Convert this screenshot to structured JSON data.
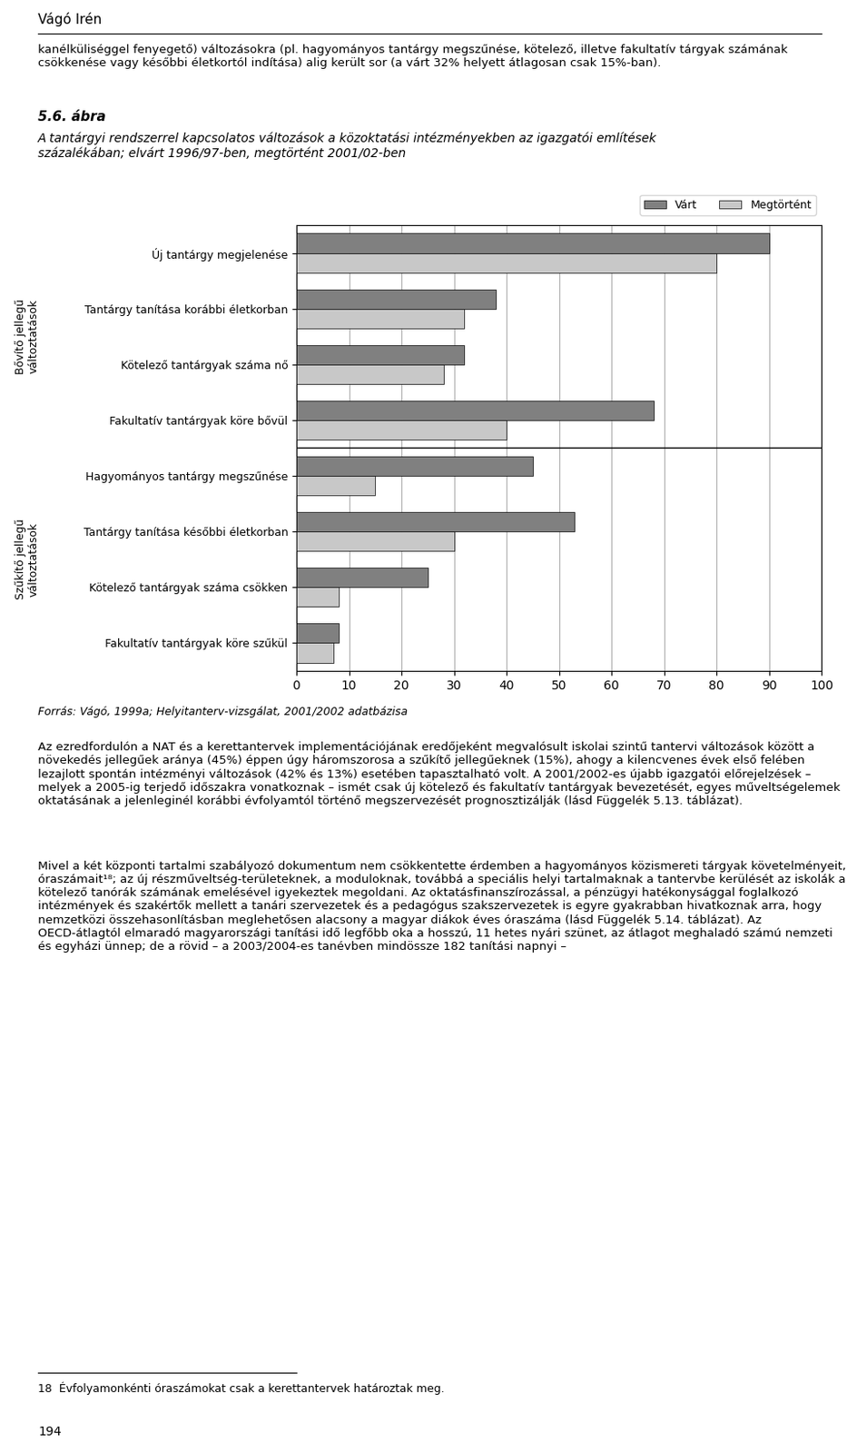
{
  "chart_data": {
    "type": "bar",
    "orientation": "horizontal",
    "header": "Vágó Irén",
    "text_above": "kanélküliséggel fenyegető) változásokra (pl. hagyományos tantárgy megszűnése, kötelező, illetve fakultatív tárgyak számának csökkenése vagy későbbi életkortól indítása) alig került sor (a várt 32% helyett átlagosan csak 15%-ban).",
    "title": "5.6. ábra",
    "subtitle": "A tantárgyi rendszerrel kapcsolatos változások a közoktatási intézményekben az igazgatói említések\nszázalékában; elvárt 1996/97-ben, megtörtént 2001/02-ben",
    "categories": [
      "Új tantárgy megjelenése",
      "Tantárgy tanítása korábbi életkorban",
      "Kötelező tantárgyak száma nő",
      "Fakultatív tantárgyak köre bővül",
      "Hagyományos tantárgy megszűnése",
      "Tantárgy tanítása későbbi életkorban",
      "Kötelező tantárgyak száma csökken",
      "Fakultatív tantárgyak köre szűkül"
    ],
    "series": [
      {
        "name": "Várt",
        "color": "#808080",
        "values": [
          90,
          38,
          32,
          68,
          45,
          53,
          25,
          8
        ]
      },
      {
        "name": "Megtörtént",
        "color": "#c8c8c8",
        "values": [
          80,
          32,
          28,
          40,
          15,
          30,
          8,
          7
        ]
      }
    ],
    "groups": [
      {
        "label": "Bővítő jellegű\nváltoztatások",
        "categories": [
          "Új tantárgy megjelenése",
          "Tantárgy tanítása korábbi életkorban",
          "Kötelező tantárgyak száma nő",
          "Fakultatív tantárgyak köre bővül"
        ]
      },
      {
        "label": "Szűkítő jellegű\nváltoztatások",
        "categories": [
          "Hagyományos tantárgy megszűnése",
          "Tantárgy tanítása későbbi életkorban",
          "Kötelező tantárgyak száma csökken",
          "Fakultatív tantárgyak köre szűkül"
        ]
      }
    ],
    "xlim": [
      0,
      100
    ],
    "xticks": [
      0,
      10,
      20,
      30,
      40,
      50,
      60,
      70,
      80,
      90,
      100
    ],
    "grid": true,
    "legend": "upper right",
    "source": "Forrás: Vágó, 1999a; Helyitanterv-vizsgálat, 2001/2002 adatbázisa",
    "text_below": [
      "Az ezredfordulón a NAT és a kerettantervek implementációjának eredőjeként megvalósult iskolai szintű tantervi változások között a növekedés jellegűek aránya (45%) éppen úgy háromszorosa a szűkítő jellegűeknek (15%), ahogy a kilencvenes évek első felében lezajlott spontán intézményi változások (42% és 13%) esetében tapasztalható volt. A 2001/2002-es újabb igazgatói előrejelzések – melyek a 2005-ig terjedő időszakra vonatkoznak – ismét csak új kötelező és fakultatív tantárgyak bevezetését, egyes műveltségelemek oktatásának a jelenleginél korábbi évfolyamtól történő megszervezését prognosztizálják (lásd Függelék 5.13. táblázat).",
      "Mivel a két központi tartalmi szabályozó dokumentum nem csökkentette érdemben a hagyományos közismereti tárgyak követelményeit, óraszámait¹⁸; az új részműveltség-területeknek, a moduloknak, továbbá a speciális helyi tartalmaknak a tantervbe kerülését az iskolák a kötelező tanórák számának emelésével igyekeztek megoldani. Az oktatásfinanszírozással, a pénzügyi hatékonysággal foglalkozó intézmények és szakértők mellett a tanári szervezetek és a pedagógus szakszervezetek is egyre gyakrabban hivatkoznak arra, hogy nemzetközi összehasonlításban meglehetősen alacsony a magyar diákok éves óraszáma (lásd Függelék 5.14. táblázat). Az OECD-átlagtól elmaradó magyarországi tanítási idő legfőbb oka a hosszú, 11 hetes nyári szünet, az átlagot meghaladó számú nemzeti és egyházi ünnep; de a rövid – a 2003/2004-es tanévben mindössze 182 tanítási napnyi –"
    ],
    "footnote": "18  Évfolyamonkénti óraszámokat csak a kerettantervek határoztak meg.",
    "page_number": "194"
  }
}
